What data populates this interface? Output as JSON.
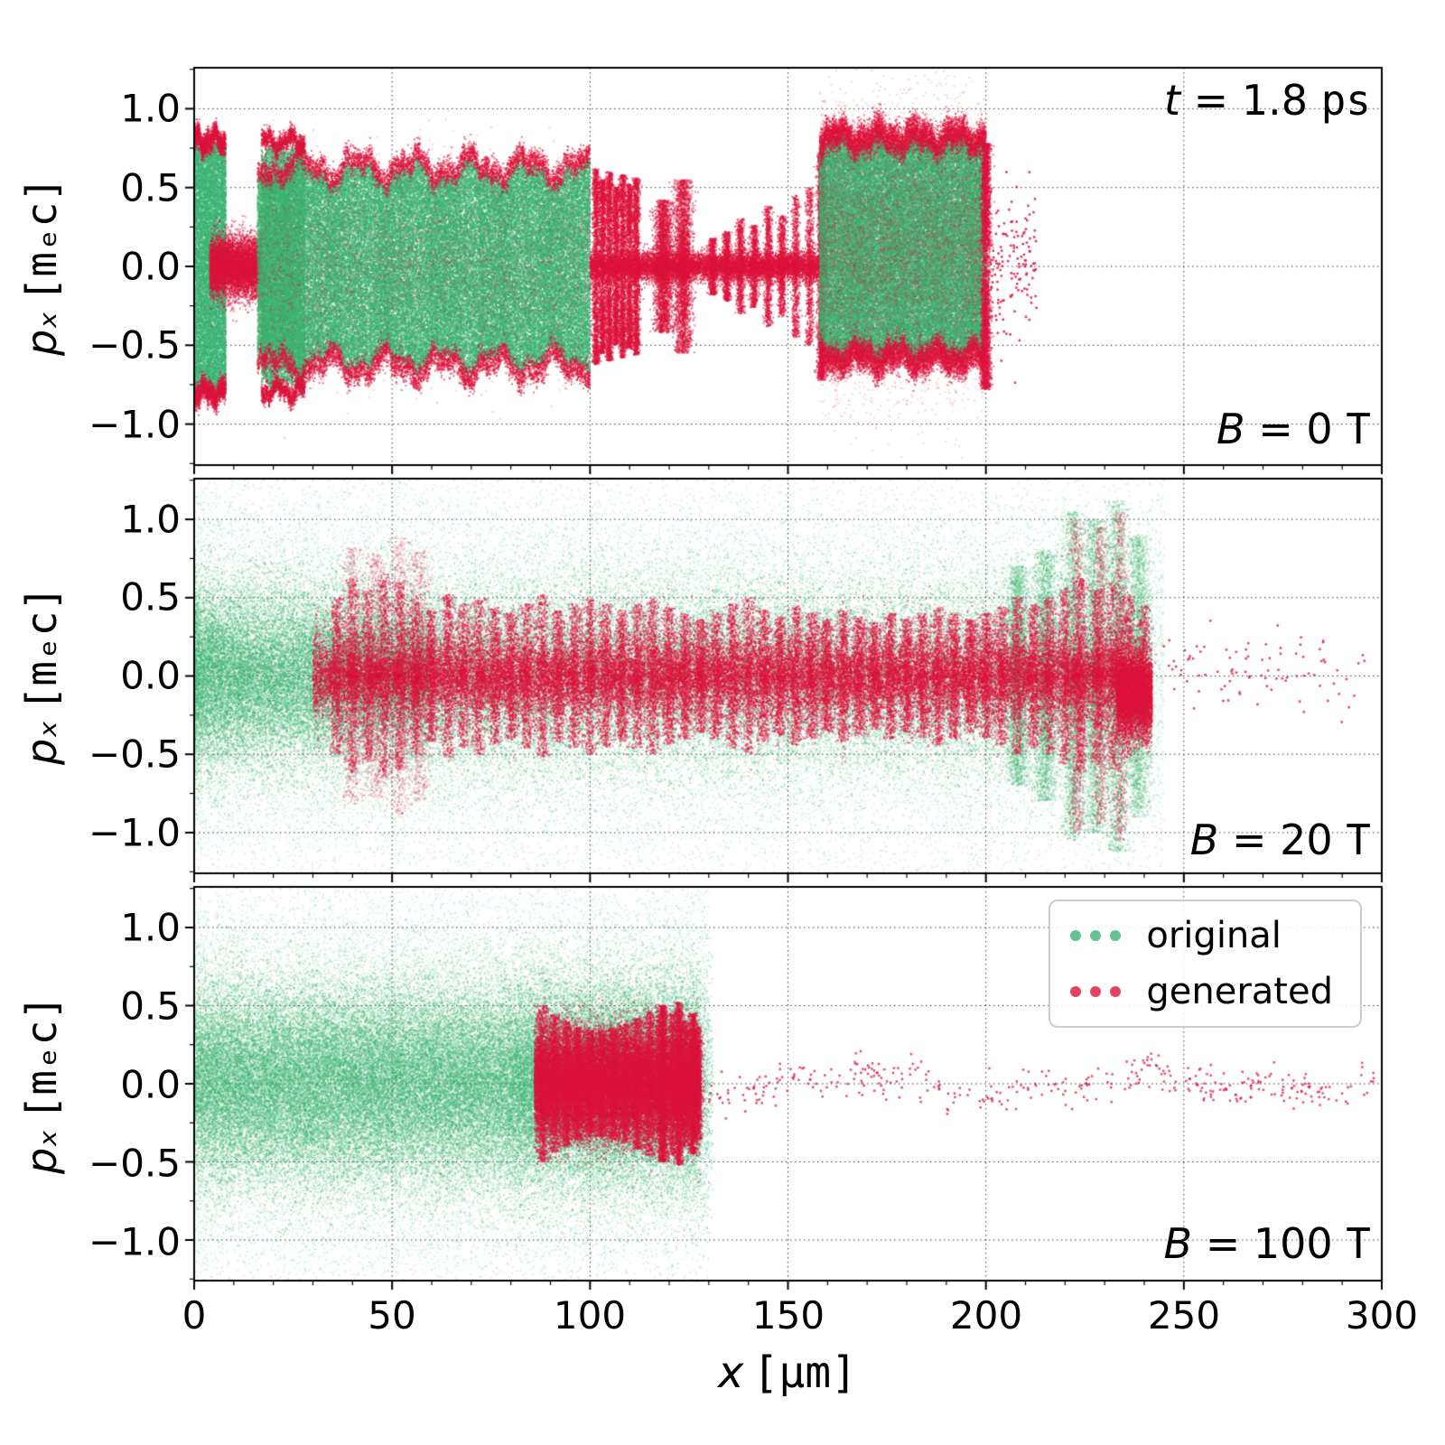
{
  "colors": {
    "green": "#3CB371",
    "red": "#DC143C"
  },
  "legend": {
    "items": [
      {
        "label": "original",
        "color": "green"
      },
      {
        "label": "generated",
        "color": "red"
      }
    ]
  },
  "chart_data": {
    "type": "scatter",
    "xlabel_var": "x",
    "xlabel_unit": "[μm]",
    "ylabel_var": "pₓ",
    "ylabel_unit": "[mₑc]",
    "time_var": "t",
    "time_eq": " = 1.8 ",
    "time_unit": "ps",
    "xticks": [
      0,
      50,
      100,
      150,
      200,
      250,
      300
    ],
    "yticks": [
      1.0,
      0.5,
      0.0,
      -0.5,
      -1.0
    ],
    "xtick_labels": [
      "0",
      "50",
      "100",
      "150",
      "200",
      "250",
      "300"
    ],
    "ytick_labels": [
      "1.0",
      "0.5",
      "0.0",
      "−0.5",
      "−1.0"
    ],
    "panels": [
      {
        "blabel_var": "B",
        "blabel_eq": " = 0 ",
        "blabel_unit": "T",
        "xlim": [
          0,
          300
        ],
        "ylim": [
          -1.26,
          1.26
        ],
        "layers": [
          {
            "color": "green",
            "shape": "fill",
            "n": 12000,
            "x": [
              0,
              8
            ],
            "amp": 0.78,
            "ampNoise": 0.08,
            "freq": 1.0,
            "alpha": 0.5
          },
          {
            "color": "red",
            "shape": "edge",
            "n": 3000,
            "x": [
              0,
              8
            ],
            "amp": 0.8,
            "ampNoise": 0.08,
            "freq": 1.0,
            "jit": 0.035,
            "alpha": 0.6
          },
          {
            "color": "red",
            "shape": "gauss",
            "n": 7000,
            "x": [
              4,
              17
            ],
            "sd": 0.09,
            "alpha": 0.5
          },
          {
            "color": "green",
            "shape": "fill",
            "n": 70000,
            "x": [
              16,
              100
            ],
            "amp": 0.6,
            "ampNoise": 0.18,
            "freq": 0.35,
            "ph": 2.0,
            "alpha": 0.5
          },
          {
            "color": "green",
            "shape": "fill",
            "n": 10000,
            "x": [
              17,
              28
            ],
            "amp": 0.76,
            "ampNoise": 0.08,
            "freq": 0.8,
            "alpha": 0.5
          },
          {
            "color": "red",
            "shape": "edge",
            "n": 9000,
            "x": [
              16,
              100
            ],
            "amp": 0.63,
            "ampNoise": 0.18,
            "freq": 0.35,
            "ph": 2.0,
            "jit": 0.04,
            "alpha": 0.6
          },
          {
            "color": "red",
            "shape": "edge",
            "n": 2000,
            "x": [
              17,
              28
            ],
            "amp": 0.79,
            "ampNoise": 0.08,
            "freq": 0.8,
            "jit": 0.03,
            "alpha": 0.6
          },
          {
            "color": "red",
            "shape": "gauss",
            "n": 4000,
            "x": [
              16,
              100
            ],
            "sd": 0.3,
            "alpha": 0.2
          },
          {
            "color": "red",
            "shape": "spike",
            "n": 10000,
            "centers": [
              101.5,
              103.2,
              104.9,
              106.6,
              108.3,
              110,
              111.7
            ],
            "amps": [
              0.62,
              0.55,
              0.6,
              0.5,
              0.58,
              0.52,
              0.56
            ],
            "w": 0.45,
            "pk": 0.8,
            "alpha": 0.55
          },
          {
            "color": "red",
            "shape": "gauss",
            "n": 9000,
            "x": [
              100,
              160
            ],
            "sd": 0.045,
            "alpha": 0.6
          },
          {
            "color": "red",
            "shape": "spike",
            "n": 6000,
            "centers": [
              118.5,
              123.5
            ],
            "amps": [
              0.42,
              0.55
            ],
            "w": 1.1,
            "pk": 1.4,
            "alpha": 0.5
          },
          {
            "color": "red",
            "shape": "spike",
            "n": 6000,
            "centers": [
              131,
              134.5,
              138,
              141.5,
              145,
              148.5,
              152,
              155.5
            ],
            "amps": [
              0.18,
              0.22,
              0.3,
              0.26,
              0.38,
              0.32,
              0.45,
              0.5
            ],
            "w": 0.5,
            "pk": 1.2,
            "alpha": 0.55
          },
          {
            "color": "red",
            "shape": "spike",
            "n": 2500,
            "centers": [
              158.5
            ],
            "amps": [
              0.72
            ],
            "w": 0.5,
            "pk": 0.8,
            "alpha": 0.55
          },
          {
            "color": "green",
            "shape": "fill",
            "n": 55000,
            "x": [
              158,
              200
            ],
            "amp": 0.68,
            "p0": 0.12,
            "ampNoise": 0.1,
            "freq": 0.5,
            "ph": 5.0,
            "alpha": 0.5
          },
          {
            "color": "red",
            "shape": "edge",
            "n": 12000,
            "x": [
              158,
              200
            ],
            "amp": 0.7,
            "p0": 0.12,
            "ampNoise": 0.1,
            "freq": 0.5,
            "ph": 5.0,
            "jit": 0.05,
            "alpha": 0.55
          },
          {
            "color": "red",
            "shape": "gauss",
            "n": 8000,
            "x": [
              158,
              200
            ],
            "p0": 0.12,
            "sd": 0.42,
            "alpha": 0.18
          },
          {
            "color": "red",
            "shape": "spike",
            "n": 3000,
            "centers": [
              200
            ],
            "amps": [
              0.78
            ],
            "w": 0.6,
            "pk": 0.8,
            "alpha": 0.55
          },
          {
            "color": "red",
            "shape": "gauss",
            "n": 140,
            "x": [
              201,
              213
            ],
            "sd": 0.25,
            "alpha": 0.85,
            "size": 2.5
          }
        ]
      },
      {
        "blabel_var": "B",
        "blabel_eq": " = 20 ",
        "blabel_unit": "T",
        "xlim": [
          0,
          300
        ],
        "ylim": [
          -1.26,
          1.26
        ],
        "layers": [
          {
            "color": "green",
            "shape": "gauss",
            "n": 40000,
            "x": [
              0,
              242
            ],
            "sd": 0.3,
            "xbias": 1.3,
            "alpha": 0.3
          },
          {
            "color": "green",
            "shape": "gauss",
            "n": 35000,
            "x": [
              0,
              245
            ],
            "sd": 0.62,
            "xbias": 1.15,
            "alpha": 0.16
          },
          {
            "color": "green",
            "shape": "gauss",
            "n": 8000,
            "x": [
              0,
              60
            ],
            "sd": 0.22,
            "alpha": 0.35
          },
          {
            "color": "green",
            "shape": "spike",
            "n": 13000,
            "centers": [
              208,
              215,
              222,
              227.5,
              233,
              238.5
            ],
            "amps": [
              0.7,
              0.8,
              1.05,
              1.0,
              1.12,
              0.9
            ],
            "w": 1.4,
            "pk": 1.1,
            "alpha": 0.28
          },
          {
            "color": "red",
            "shape": "gauss",
            "n": 35000,
            "x": [
              30,
              240
            ],
            "sd": 0.13,
            "ampNoise": 0.5,
            "freq": 0.9,
            "ph": 3.0,
            "alpha": 0.5
          },
          {
            "color": "red",
            "shape": "spike",
            "n": 35000,
            "centers": [
              36,
              40,
              44,
              48,
              52,
              56,
              60,
              64,
              68,
              72,
              76,
              80,
              84,
              88,
              92,
              96,
              100,
              104,
              108,
              112,
              116,
              120,
              124,
              128,
              132,
              136,
              140,
              144,
              148,
              152,
              156,
              160,
              164,
              168,
              172,
              176,
              180,
              184,
              188,
              192,
              196,
              200,
              204,
              208,
              212,
              216,
              220,
              224,
              228,
              232,
              236,
              240
            ],
            "amps": [
              0.5,
              0.62,
              0.55,
              0.65,
              0.6,
              0.5,
              0.42,
              0.52,
              0.46,
              0.5,
              0.44,
              0.4,
              0.46,
              0.52,
              0.42,
              0.46,
              0.5,
              0.46,
              0.42,
              0.46,
              0.5,
              0.44,
              0.4,
              0.36,
              0.4,
              0.46,
              0.5,
              0.42,
              0.38,
              0.44,
              0.4,
              0.36,
              0.42,
              0.38,
              0.34,
              0.4,
              0.36,
              0.4,
              0.44,
              0.4,
              0.36,
              0.4,
              0.44,
              0.5,
              0.46,
              0.5,
              0.56,
              0.62,
              0.55,
              0.6,
              0.52,
              0.45
            ],
            "w": 0.8,
            "pk": 1.1,
            "alpha": 0.45
          },
          {
            "color": "red",
            "shape": "spike",
            "n": 5000,
            "centers": [
              40,
              46,
              52,
              57
            ],
            "amps": [
              0.82,
              0.78,
              0.88,
              0.8
            ],
            "w": 1.3,
            "pk": 1.6,
            "alpha": 0.22
          },
          {
            "color": "red",
            "shape": "spike",
            "n": 4000,
            "centers": [
              223,
              229,
              234
            ],
            "amps": [
              1.0,
              0.95,
              1.05
            ],
            "w": 0.9,
            "pk": 1.8,
            "alpha": 0.3
          },
          {
            "color": "red",
            "shape": "gauss",
            "n": 5000,
            "x": [
              233,
              242
            ],
            "sd": 0.12,
            "p0": -0.12,
            "alpha": 0.55
          },
          {
            "color": "red",
            "shape": "gauss",
            "n": 90,
            "x": [
              244,
              296
            ],
            "sd": 0.12,
            "p0": 0.05,
            "alpha": 0.8,
            "size": 2.5
          }
        ]
      },
      {
        "blabel_var": "B",
        "blabel_eq": " = 100 ",
        "blabel_unit": "T",
        "xlim": [
          0,
          300
        ],
        "ylim": [
          -1.26,
          1.26
        ],
        "layers": [
          {
            "color": "green",
            "shape": "gauss",
            "n": 55000,
            "x": [
              0,
              128
            ],
            "sd": 0.3,
            "alpha": 0.3
          },
          {
            "color": "green",
            "shape": "gauss",
            "n": 30000,
            "x": [
              0,
              130
            ],
            "sd": 0.6,
            "alpha": 0.16
          },
          {
            "color": "green",
            "shape": "gauss",
            "n": 6000,
            "x": [
              80,
              131
            ],
            "sd": 0.35,
            "alpha": 0.3
          },
          {
            "color": "red",
            "shape": "gauss",
            "n": 28000,
            "x": [
              86,
              128
            ],
            "sd": 0.16,
            "alpha": 0.5
          },
          {
            "color": "red",
            "shape": "spike",
            "n": 16000,
            "centers": [
              88,
              91,
              94,
              97,
              100,
              103,
              106,
              109,
              112,
              115,
              118,
              121,
              124,
              127
            ],
            "amps": [
              0.5,
              0.44,
              0.4,
              0.36,
              0.34,
              0.34,
              0.36,
              0.38,
              0.42,
              0.46,
              0.5,
              0.46,
              0.4,
              0.36
            ],
            "w": 0.7,
            "pk": 1.2,
            "alpha": 0.5
          },
          {
            "color": "red",
            "shape": "spike",
            "n": 4000,
            "centers": [
              118.5,
              122.5,
              126
            ],
            "amps": [
              0.5,
              0.52,
              0.45
            ],
            "w": 0.5,
            "pk": 0.8,
            "alpha": 0.5
          },
          {
            "color": "red",
            "shape": "gauss",
            "n": 380,
            "x": [
              128,
              298
            ],
            "sd": 0.06,
            "wander": 0.1,
            "wfreq": 0.07,
            "alpha": 0.75,
            "size": 2.5
          }
        ]
      }
    ]
  }
}
